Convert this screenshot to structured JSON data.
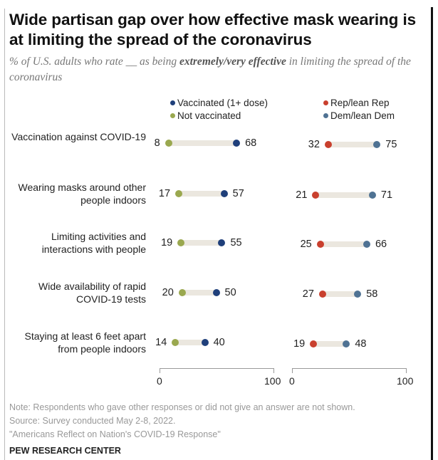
{
  "title": "Wide partisan gap over how effective mask wearing is at limiting the spread of the coronavirus",
  "subtitle": {
    "pre": "% of U.S. adults who rate __ as being ",
    "bold": "extremely/very effective",
    "post": " in limiting the spread of the coronavirus"
  },
  "chart_data": {
    "type": "dot-range",
    "categories": [
      "Vaccination against COVID-19",
      "Wearing masks around other people indoors",
      "Limiting activities and interactions with people",
      "Wide availability of rapid COVID-19 tests",
      "Staying at least 6 feet apart from people indoors"
    ],
    "panels": [
      {
        "name": "vaccination",
        "series": [
          {
            "name": "Vaccinated (1+ dose)",
            "color": "#1f3f7a",
            "values": [
              68,
              57,
              55,
              50,
              40
            ]
          },
          {
            "name": "Not vaccinated",
            "color": "#9aa84f",
            "values": [
              8,
              17,
              19,
              20,
              14
            ]
          }
        ],
        "xlim": [
          0,
          100
        ],
        "ticks": [
          "0",
          "100"
        ]
      },
      {
        "name": "party",
        "series": [
          {
            "name": "Rep/lean Rep",
            "color": "#c9402e",
            "values": [
              32,
              21,
              25,
              27,
              19
            ]
          },
          {
            "name": "Dem/lean Dem",
            "color": "#4f7293",
            "values": [
              75,
              71,
              66,
              58,
              48
            ]
          }
        ],
        "xlim": [
          0,
          100
        ],
        "ticks": [
          "0",
          "100"
        ]
      }
    ]
  },
  "footer": {
    "note": "Note: Respondents who gave other responses or did not give an answer are not shown.",
    "source": "Source: Survey conducted May 2-8, 2022.",
    "report": "\"Americans Reflect on Nation's COVID-19 Response\"",
    "org": "PEW RESEARCH CENTER"
  }
}
